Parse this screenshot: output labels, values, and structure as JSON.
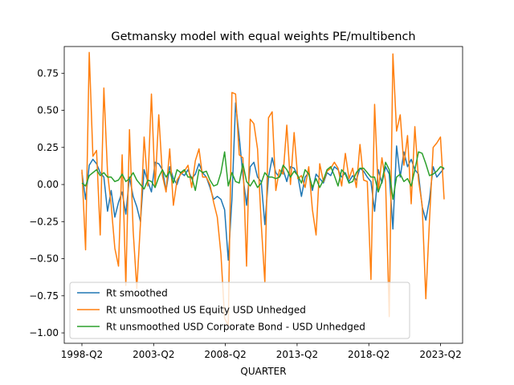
{
  "chart_data": {
    "type": "line",
    "title": "Getmansky model with equal weights PE/multibench",
    "xlabel": "QUARTER",
    "ylabel": "",
    "x_tick_labels": [
      "1998-Q2",
      "2003-Q2",
      "2008-Q2",
      "2013-Q2",
      "2018-Q2",
      "2023-Q2"
    ],
    "y_ticks": [
      0.75,
      0.5,
      0.25,
      0.0,
      -0.25,
      -0.5,
      -0.75,
      -1.0
    ],
    "y_tick_labels": [
      "0.75",
      "0.50",
      "0.25",
      "0.00",
      "−0.25",
      "−0.50",
      "−0.75",
      "−1.00"
    ],
    "ylim": [
      -1.07,
      0.93
    ],
    "x_start": "1998-Q2",
    "x_end": "2023-Q3",
    "grid": false,
    "legend_position": "lower-left",
    "series": [
      {
        "name": "Rt smoothed",
        "color": "#1f77b4",
        "values": [
          0.08,
          -0.1,
          0.13,
          0.17,
          0.14,
          0.08,
          0.05,
          -0.18,
          -0.04,
          -0.22,
          -0.12,
          -0.05,
          -0.2,
          0.05,
          -0.08,
          -0.15,
          -0.25,
          0.1,
          0.02,
          -0.05,
          0.15,
          0.14,
          0.1,
          -0.04,
          0.12,
          0.04,
          0.0,
          0.08,
          0.06,
          0.1,
          0.04,
          0.07,
          0.14,
          0.08,
          0.05,
          -0.02,
          -0.1,
          -0.08,
          -0.1,
          -0.17,
          -0.51,
          -0.1,
          0.55,
          0.32,
          0.06,
          -0.14,
          0.12,
          0.15,
          0.05,
          0.02,
          -0.27,
          0.05,
          0.18,
          0.08,
          0.05,
          0.1,
          0.02,
          0.12,
          0.11,
          0.06,
          -0.08,
          0.05,
          0.08,
          -0.04,
          0.07,
          0.04,
          0.01,
          0.08,
          0.06,
          0.12,
          0.1,
          0.05,
          0.08,
          0.02,
          0.06,
          0.03,
          0.11,
          0.09,
          0.05,
          0.02,
          -0.18,
          0.1,
          0.01,
          0.12,
          0.07,
          -0.3,
          0.26,
          0.05,
          0.22,
          0.12,
          0.17,
          0.1,
          0.07,
          -0.15,
          -0.24,
          -0.1,
          0.12,
          0.05,
          0.08,
          0.11
        ],
        "connect_to_previous": true
      },
      {
        "name": "Rt unsmoothed US Equity USD Unhedged",
        "color": "#ff7f0e",
        "values": [
          0.1,
          -0.44,
          0.89,
          0.19,
          0.23,
          -0.34,
          0.65,
          0.08,
          -0.14,
          -0.43,
          -0.55,
          0.2,
          -0.68,
          0.37,
          -0.31,
          -0.7,
          -0.26,
          0.32,
          -0.01,
          0.61,
          -0.02,
          0.47,
          0.06,
          -0.05,
          0.24,
          -0.14,
          0.03,
          0.07,
          0.09,
          0.13,
          -0.02,
          0.16,
          0.24,
          0.05,
          0.05,
          0.0,
          -0.12,
          -0.22,
          -0.47,
          -0.9,
          -0.95,
          0.62,
          0.61,
          0.2,
          0.18,
          -0.55,
          0.44,
          0.41,
          0.24,
          -0.26,
          -0.66,
          0.45,
          0.49,
          -0.04,
          0.1,
          0.07,
          0.4,
          0.0,
          0.35,
          0.04,
          0.06,
          -0.02,
          0.12,
          -0.17,
          -0.34,
          0.14,
          0.02,
          0.09,
          0.11,
          0.15,
          0.11,
          -0.01,
          0.21,
          0.04,
          0.11,
          -0.02,
          0.27,
          0.03,
          0.02,
          -0.64,
          0.54,
          -0.05,
          0.18,
          0.02,
          -0.89,
          0.88,
          0.36,
          0.47,
          0.13,
          0.33,
          -0.13,
          0.39,
          0.03,
          -0.14,
          -0.77,
          -0.24,
          0.25,
          0.28,
          0.32,
          -0.1
        ],
        "connect_to_previous": true
      },
      {
        "name": "Rt unsmoothed USD Corporate Bond - USD Unhedged",
        "color": "#2ca02c",
        "values": [
          0.01,
          -0.01,
          0.06,
          0.08,
          0.1,
          0.06,
          0.08,
          0.05,
          0.05,
          0.02,
          0.03,
          0.07,
          0.02,
          0.04,
          0.08,
          0.03,
          0.0,
          -0.03,
          0.03,
          0.02,
          -0.02,
          0.05,
          0.1,
          0.05,
          0.09,
          0.01,
          0.1,
          0.08,
          0.1,
          0.05,
          0.05,
          -0.04,
          0.1,
          0.08,
          0.09,
          0.03,
          -0.01,
          0.0,
          0.08,
          0.22,
          -0.01,
          0.08,
          0.02,
          0.01,
          0.14,
          0.02,
          -0.01,
          0.03,
          -0.02,
          0.01,
          0.08,
          0.05,
          0.05,
          0.04,
          0.05,
          0.13,
          0.1,
          0.05,
          0.09,
          0.06,
          0.01,
          0.1,
          0.07,
          -0.02,
          0.04,
          -0.02,
          0.03,
          0.1,
          0.12,
          0.06,
          -0.01,
          0.1,
          0.07,
          0.01,
          0.02,
          0.08,
          0.11,
          0.11,
          0.08,
          0.05,
          0.05,
          -0.05,
          0.02,
          0.15,
          0.1,
          -0.1,
          0.05,
          0.07,
          0.02,
          0.04,
          -0.01,
          0.1,
          0.22,
          0.21,
          0.14,
          0.06,
          0.07,
          0.09,
          0.12,
          0.11
        ],
        "connect_to_previous": true
      }
    ]
  }
}
